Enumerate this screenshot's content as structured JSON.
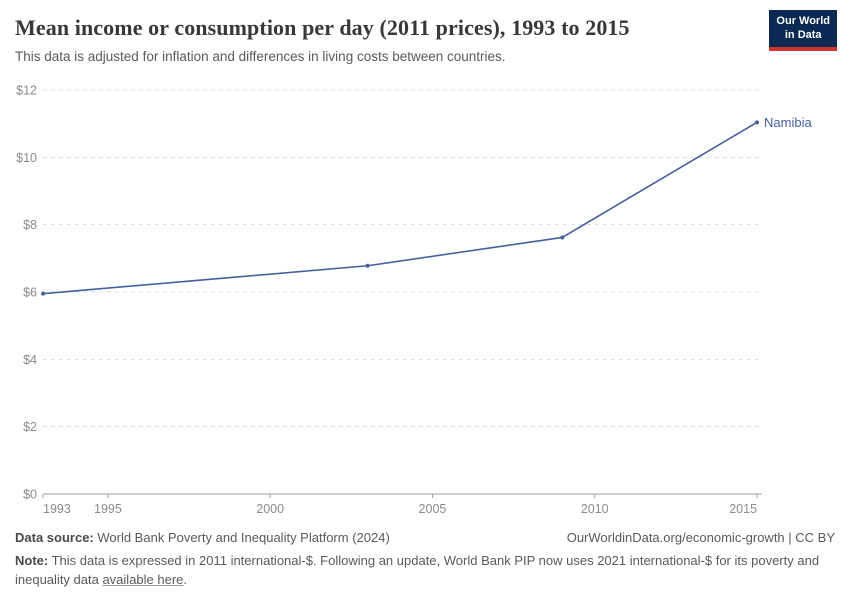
{
  "header": {
    "title": "Mean income or consumption per day (2011 prices), 1993 to 2015",
    "subtitle": "This data is adjusted for inflation and differences in living costs between countries.",
    "logo": {
      "line1": "Our World",
      "line2": "in Data"
    }
  },
  "chart_data": {
    "type": "line",
    "title": "Mean income or consumption per day (2011 prices), 1993 to 2015",
    "xlabel": "",
    "ylabel": "",
    "xlim": [
      1993,
      2015
    ],
    "ylim": [
      0,
      12
    ],
    "xticks": [
      1993,
      1995,
      2000,
      2005,
      2010,
      2015
    ],
    "yticks": [
      0,
      2,
      4,
      6,
      8,
      10,
      12
    ],
    "ytick_prefix": "$",
    "grid": true,
    "grid_style": "dashed",
    "legend_position": "end-of-line",
    "series": [
      {
        "name": "Namibia",
        "color": "#45619d",
        "points": [
          [
            1993,
            5.95
          ],
          [
            2003,
            6.78
          ],
          [
            2009,
            7.62
          ],
          [
            2015,
            11.04
          ]
        ]
      }
    ],
    "colors": {
      "gridline": "#dcdcdc",
      "axis": "#a1a1a1",
      "tick_label": "#8b8b8b"
    }
  },
  "footer": {
    "datasource_label": "Data source:",
    "datasource_text": " World Bank Poverty and Inequality Platform (2024)",
    "attribution": "OurWorldinData.org/economic-growth | CC BY",
    "note_label": "Note:",
    "note_before_link": " This data is expressed in 2011 international-$. Following an update, World Bank PIP now uses 2021 international-$ for its poverty and inequality data ",
    "note_link": "available here",
    "note_after_link": "."
  }
}
